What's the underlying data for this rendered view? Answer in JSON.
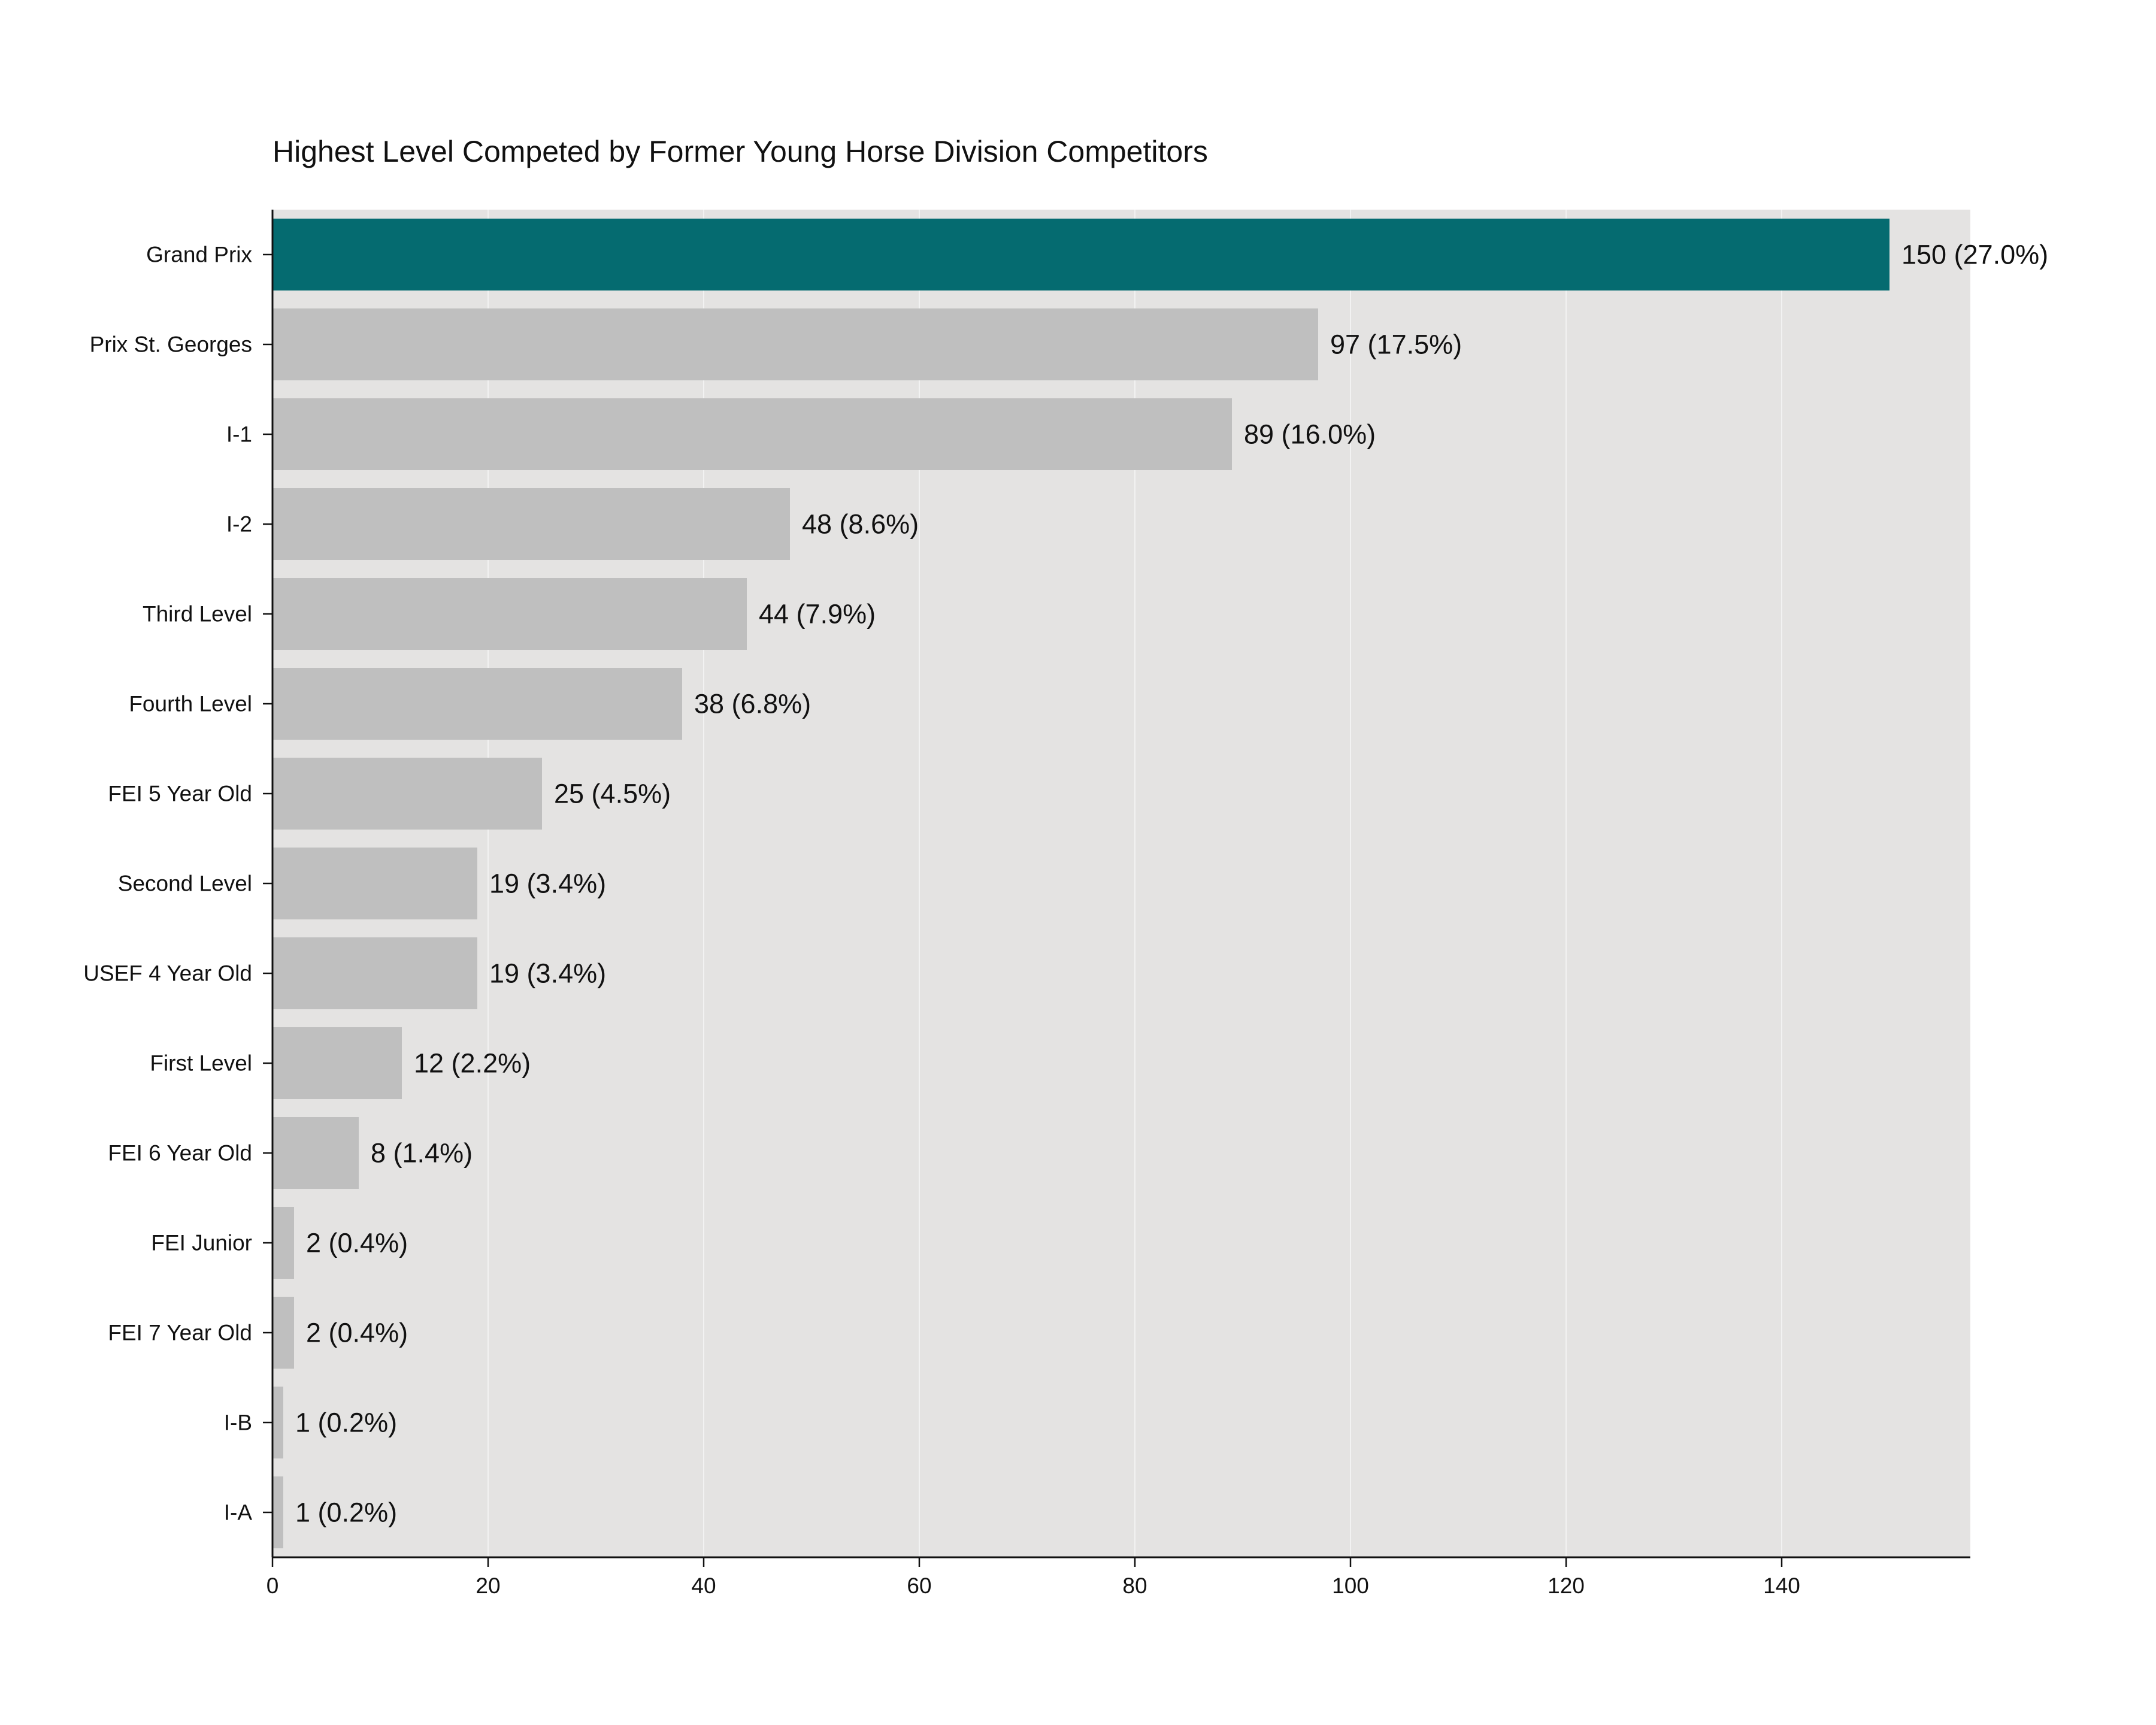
{
  "chart_data": {
    "type": "bar",
    "orientation": "horizontal",
    "title": "Highest Level Competed by Former Young Horse Division Competitors",
    "xlabel": "",
    "ylabel": "",
    "categories": [
      "Grand Prix",
      "Prix St. Georges",
      "I-1",
      "I-2",
      "Third Level",
      "Fourth Level",
      "FEI 5 Year Old",
      "Second Level",
      "USEF 4 Year Old",
      "First Level",
      "FEI 6 Year Old",
      "FEI Junior",
      "FEI 7 Year Old",
      "I-B",
      "I-A"
    ],
    "values": [
      150,
      97,
      89,
      48,
      44,
      38,
      25,
      19,
      19,
      12,
      8,
      2,
      2,
      1,
      1
    ],
    "value_labels": [
      "150 (27.0%)",
      "97 (17.5%)",
      "89 (16.0%)",
      "48 (8.6%)",
      "44 (7.9%)",
      "38 (6.8%)",
      "25 (4.5%)",
      "19 (3.4%)",
      "19 (3.4%)",
      "12 (2.2%)",
      "8 (1.4%)",
      "2 (0.4%)",
      "2 (0.4%)",
      "1 (0.2%)",
      "1 (0.2%)"
    ],
    "xlim": [
      0,
      157.5
    ],
    "xticks": [
      0,
      20,
      40,
      60,
      80,
      100,
      120,
      140
    ],
    "grid": true,
    "legend": "none",
    "highlight_index": 0,
    "colors": {
      "highlight": "#056b70",
      "bar": "#bfbfbf",
      "plot_background": "#e4e3e2",
      "gridline": "#f2f2f2",
      "axis": "#111111"
    }
  }
}
